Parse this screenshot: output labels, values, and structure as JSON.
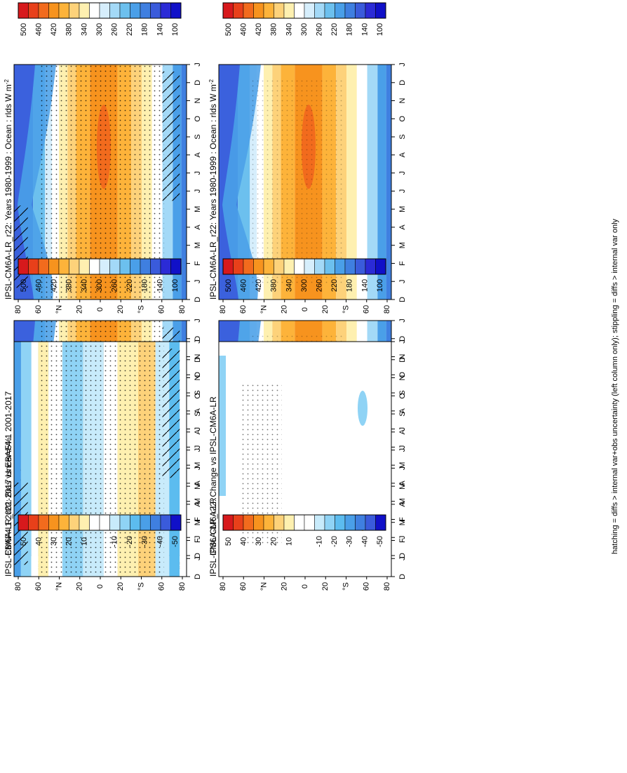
{
  "chart_data": {
    "type": "heatmap",
    "footnote": "hatching = diffs > internal var+obs uncertainty (left column only); stippling = diffs > internal var only",
    "months": [
      "D",
      "J",
      "F",
      "M",
      "A",
      "M",
      "J",
      "J",
      "A",
      "S",
      "O",
      "N",
      "D",
      "J"
    ],
    "lat_ticks": [
      "80",
      "60",
      "°N",
      "20",
      "0",
      "20",
      "°S",
      "60",
      "80"
    ],
    "panels": [
      {
        "id": "model_left",
        "title": "IPSL-CM6A-LR_r22: Years 1980-1999 : Ocean : rlds W m",
        "title_sup": "-2",
        "kind": "abs",
        "stipple": "dense",
        "hatch": true
      },
      {
        "id": "obs",
        "title": "EBAF4.1 2001-2017 Uncer=5%",
        "title_sup": "",
        "kind": "abs",
        "stipple": "dense",
        "hatch": true
      },
      {
        "id": "bias",
        "title": "IPSL-CM6A-LR_r22: Bias vs EBAF4.1 2001-2017",
        "title_sup": "",
        "kind": "diff",
        "stipple": "dense",
        "hatch": true
      },
      {
        "id": "model_right",
        "title": "IPSL-CM6A-LR_r22: Years 1980-1999 : Ocean : rlds W m",
        "title_sup": "-2",
        "kind": "abs",
        "stipple": "sparse",
        "hatch": false
      },
      {
        "id": "model_ref",
        "title": "IPSL-CM6A-LR",
        "title_sup": "",
        "kind": "abs",
        "stipple": "sparse",
        "hatch": false
      },
      {
        "id": "change",
        "title": "IPSL-CM6A-LR_r22: Change vs IPSL-CM6A-LR",
        "title_sup": "",
        "kind": "change",
        "stipple": "sparse",
        "hatch": false
      }
    ],
    "colorbars": [
      {
        "id": "cb_abs",
        "labels": [
          "500",
          "460",
          "420",
          "380",
          "340",
          "300",
          "260",
          "220",
          "180",
          "140",
          "100"
        ],
        "colors": [
          "#d7191c",
          "#e8401a",
          "#f26b1d",
          "#f7931e",
          "#fdb33a",
          "#fdd27a",
          "#fef0b0",
          "#ffffff",
          "#d6eefc",
          "#a3d9f7",
          "#6cc0ee",
          "#4a9fe8",
          "#3f7fe0",
          "#3a5bdb",
          "#2b2bd6",
          "#1010c8"
        ]
      },
      {
        "id": "cb_diff",
        "labels": [
          "50",
          "40",
          "30",
          "20",
          "10",
          "",
          "-10",
          "-20",
          "-30",
          "-40",
          "-50"
        ],
        "colors": [
          "#d7191c",
          "#e8401a",
          "#f26b1d",
          "#f7931e",
          "#fdb33a",
          "#fdd27a",
          "#fef0b0",
          "#ffffff",
          "#ffffff",
          "#c8ebfb",
          "#8fd3f5",
          "#5cbcef",
          "#4a9fe8",
          "#3f7fe0",
          "#3a5bdb",
          "#1010c8"
        ]
      }
    ]
  }
}
